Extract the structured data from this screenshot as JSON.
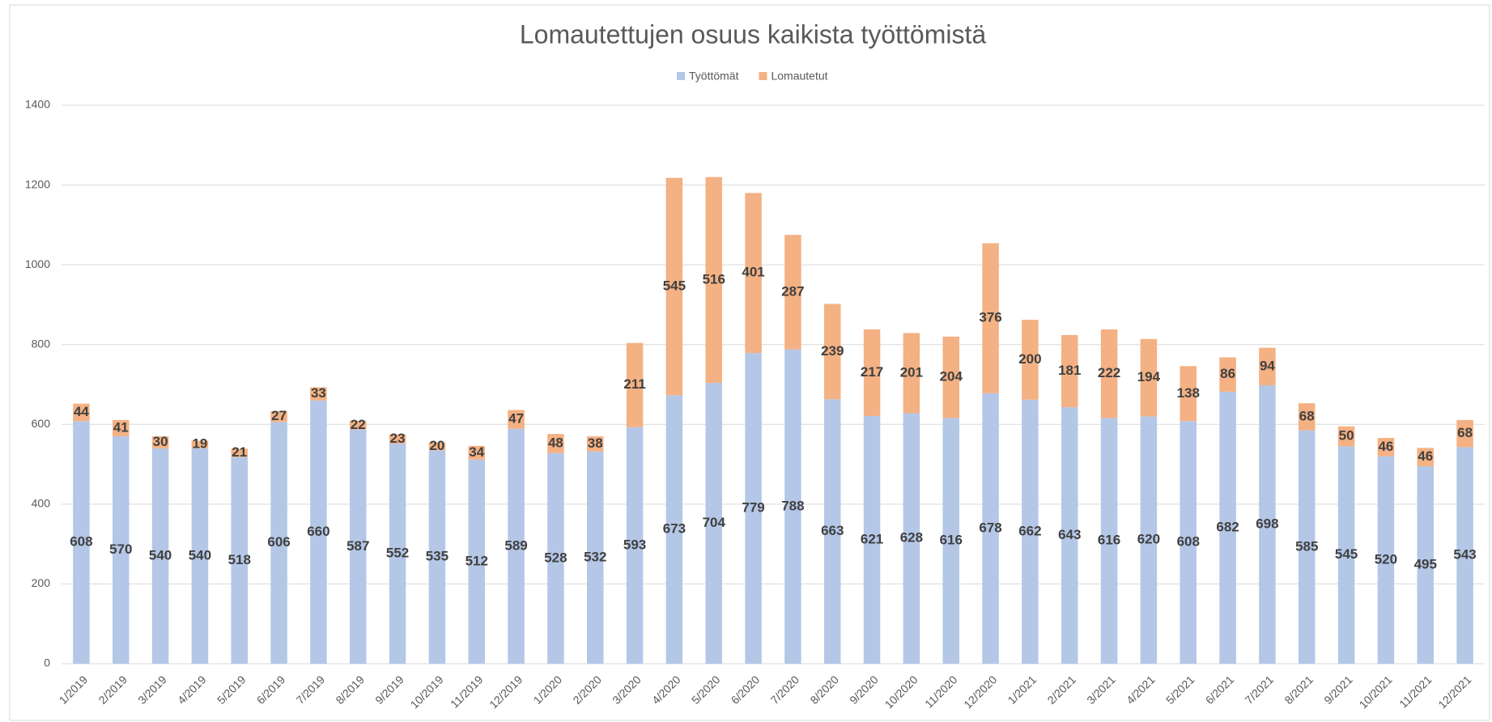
{
  "chart_data": {
    "type": "stacked_bar",
    "title": "Lomautettujen osuus kaikista työttömistä",
    "categories": [
      "1/2019",
      "2/2019",
      "3/2019",
      "4/2019",
      "5/2019",
      "6/2019",
      "7/2019",
      "8/2019",
      "9/2019",
      "10/2019",
      "11/2019",
      "12/2019",
      "1/2020",
      "2/2020",
      "3/2020",
      "4/2020",
      "5/2020",
      "6/2020",
      "7/2020",
      "8/2020",
      "9/2020",
      "10/2020",
      "11/2020",
      "12/2020",
      "1/2021",
      "2/2021",
      "3/2021",
      "4/2021",
      "5/2021",
      "6/2021",
      "7/2021",
      "8/2021",
      "9/2021",
      "10/2021",
      "11/2021",
      "12/2021"
    ],
    "series": [
      {
        "name": "Työttömät",
        "color": "#b4c7e7",
        "values": [
          608,
          570,
          540,
          540,
          518,
          606,
          660,
          587,
          552,
          535,
          512,
          589,
          528,
          532,
          593,
          673,
          704,
          779,
          788,
          663,
          621,
          628,
          616,
          678,
          662,
          643,
          616,
          620,
          608,
          682,
          698,
          585,
          545,
          520,
          495,
          543
        ]
      },
      {
        "name": "Lomautetut",
        "color": "#f4b183",
        "values": [
          44,
          41,
          30,
          19,
          21,
          27,
          33,
          22,
          23,
          20,
          34,
          47,
          48,
          38,
          211,
          545,
          516,
          401,
          287,
          239,
          217,
          201,
          204,
          376,
          200,
          181,
          222,
          194,
          138,
          86,
          94,
          68,
          50,
          46,
          46,
          68
        ]
      }
    ],
    "ylim": [
      0,
      1400
    ],
    "yticks": [
      0,
      200,
      400,
      600,
      800,
      1000,
      1200,
      1400
    ],
    "grid": true,
    "legend": "top"
  }
}
